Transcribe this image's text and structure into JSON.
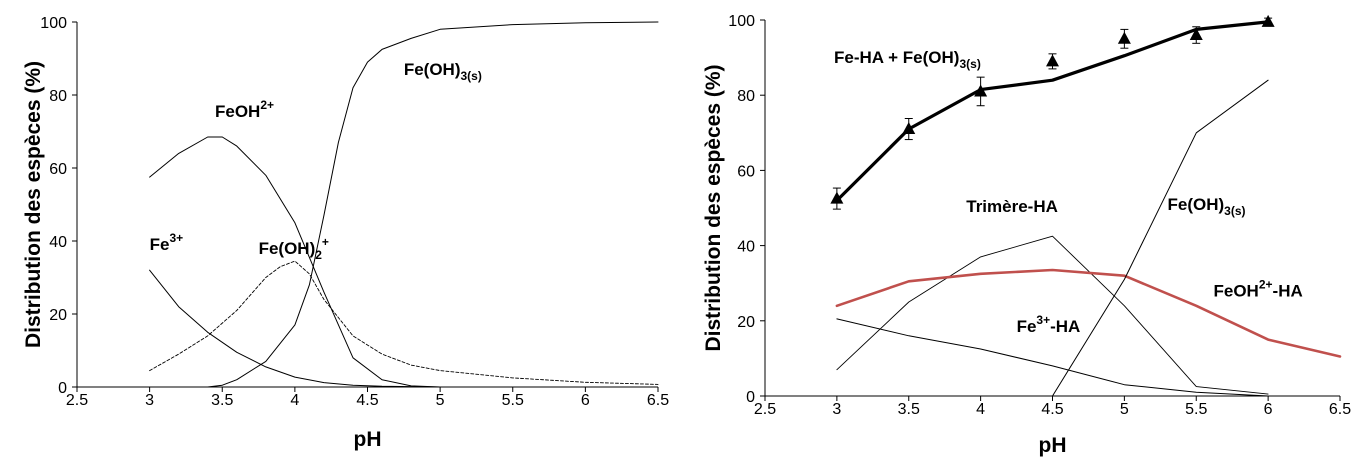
{
  "chart_data": [
    {
      "type": "line",
      "xlabel": "pH",
      "ylabel": "Distribution des espèces (%)",
      "xlim": [
        2.5,
        6.5
      ],
      "ylim": [
        0,
        100
      ],
      "xticks": [
        "2.5",
        "3",
        "3.5",
        "4",
        "4.5",
        "5",
        "5.5",
        "6",
        "6.5"
      ],
      "yticks": [
        "0",
        "20",
        "40",
        "60",
        "80",
        "100"
      ],
      "grid": false,
      "series": [
        {
          "name": "Fe3+",
          "label_main": "Fe",
          "label_sup": "3+",
          "label_sub": "",
          "label_tail": "",
          "label_at": [
            3.0,
            37.5
          ],
          "color": "#000000",
          "width": 1,
          "dash": "",
          "x": [
            3.0,
            3.2,
            3.4,
            3.6,
            3.8,
            4.0,
            4.2,
            4.4,
            4.6,
            4.8,
            5.0
          ],
          "y": [
            32,
            22,
            15,
            9.5,
            5.5,
            2.7,
            1.2,
            0.5,
            0.2,
            0.1,
            0
          ]
        },
        {
          "name": "FeOH2+",
          "label_main": "FeOH",
          "label_sup": "2+",
          "label_sub": "",
          "label_tail": "",
          "label_at": [
            3.45,
            74
          ],
          "color": "#000000",
          "width": 1,
          "dash": "",
          "x": [
            3.0,
            3.2,
            3.4,
            3.5,
            3.6,
            3.8,
            4.0,
            4.2,
            4.4,
            4.6,
            4.8,
            5.0
          ],
          "y": [
            57.5,
            64,
            68.5,
            68.5,
            66,
            58,
            45,
            26,
            8,
            2,
            0.3,
            0
          ]
        },
        {
          "name": "Fe(OH)2+",
          "label_main": "Fe(OH)",
          "label_sup": "+",
          "label_sub": "2",
          "label_tail": "",
          "label_at": [
            3.75,
            36.5
          ],
          "color": "#000000",
          "width": 0.9,
          "dash": "3 2",
          "x": [
            3.0,
            3.2,
            3.4,
            3.6,
            3.8,
            3.9,
            4.0,
            4.1,
            4.2,
            4.4,
            4.6,
            4.8,
            5.0,
            5.5,
            6.0,
            6.5
          ],
          "y": [
            4.5,
            9,
            14,
            21,
            30,
            33,
            34.5,
            31,
            24,
            14,
            9,
            6,
            4.5,
            2.5,
            1.3,
            0.7
          ]
        },
        {
          "name": "Fe(OH)3(s)",
          "label_main": "Fe(OH)",
          "label_sup": "",
          "label_sub": "3(s)",
          "label_tail": "",
          "label_at": [
            4.75,
            85.5
          ],
          "color": "#000000",
          "width": 1,
          "dash": "",
          "x": [
            3.0,
            3.2,
            3.4,
            3.5,
            3.6,
            3.8,
            4.0,
            4.1,
            4.2,
            4.3,
            4.4,
            4.5,
            4.6,
            4.8,
            5.0,
            5.5,
            6.0,
            6.5
          ],
          "y": [
            0,
            0,
            0,
            0.5,
            2,
            7,
            17,
            28,
            47,
            67,
            82,
            89,
            92.5,
            95.5,
            98,
            99.3,
            99.8,
            100
          ]
        }
      ]
    },
    {
      "type": "line",
      "xlabel": "pH",
      "ylabel": "Distribution des espèces (%)",
      "xlim": [
        2.5,
        6.5
      ],
      "ylim": [
        0,
        100
      ],
      "xticks": [
        "2.5",
        "3",
        "3.5",
        "4",
        "4.5",
        "5",
        "5.5",
        "6",
        "6.5"
      ],
      "yticks": [
        "0",
        "20",
        "40",
        "60",
        "80",
        "100"
      ],
      "grid": false,
      "series": [
        {
          "name": "Fe-HA + Fe(OH)3(s)",
          "label_main": "Fe-HA + Fe(OH)",
          "label_sup": "",
          "label_sub": "3(s)",
          "label_tail": "",
          "label_at": [
            2.98,
            88.5
          ],
          "color": "#000000",
          "width": 3.2,
          "dash": "",
          "x": [
            3.0,
            3.5,
            4.0,
            4.5,
            5.0,
            5.5,
            6.0
          ],
          "y": [
            52,
            71,
            81.5,
            84,
            90.5,
            97.5,
            99.5
          ]
        },
        {
          "name": "Trimère-HA",
          "label_main": "Trimère-HA",
          "label_sup": "",
          "label_sub": "",
          "label_tail": "",
          "label_at": [
            3.9,
            49
          ],
          "color": "#000000",
          "width": 0.9,
          "dash": "",
          "x": [
            3.0,
            3.5,
            4.0,
            4.5,
            5.0,
            5.5,
            6.0
          ],
          "y": [
            7,
            25,
            37,
            42.5,
            24,
            2.5,
            0.5
          ]
        },
        {
          "name": "Fe3+-HA",
          "label_main": "Fe",
          "label_sup": "3+",
          "label_sub": "",
          "label_tail": "-HA",
          "label_at": [
            4.25,
            17
          ],
          "color": "#000000",
          "width": 1,
          "dash": "",
          "x": [
            3.0,
            3.5,
            4.0,
            4.5,
            5.0,
            5.5,
            6.0
          ],
          "y": [
            20.5,
            16,
            12.5,
            8,
            3,
            1,
            0
          ]
        },
        {
          "name": "FeOH2+-HA",
          "label_main": "FeOH",
          "label_sup": "2+",
          "label_sub": "",
          "label_tail": "-HA",
          "label_at": [
            5.62,
            26.5
          ],
          "color": "#c0504d",
          "width": 2.6,
          "dash": "",
          "x": [
            3.0,
            3.5,
            4.0,
            4.5,
            5.0,
            5.5,
            6.0,
            6.5
          ],
          "y": [
            24,
            30.5,
            32.5,
            33.5,
            32,
            24,
            15,
            10.5
          ]
        },
        {
          "name": "Fe(OH)3(s)",
          "label_main": "Fe(OH)",
          "label_sup": "",
          "label_sub": "3(s)",
          "label_tail": "",
          "label_at": [
            5.3,
            49.5
          ],
          "color": "#000000",
          "width": 1,
          "dash": "",
          "x": [
            4.5,
            5.0,
            5.5,
            6.0
          ],
          "y": [
            0,
            31,
            70,
            84
          ]
        }
      ],
      "points": {
        "marker": "triangle",
        "x": [
          3.0,
          3.5,
          4.0,
          4.5,
          5.0,
          5.5,
          6.0
        ],
        "y": [
          52.5,
          71,
          81,
          89,
          95,
          96,
          99.5
        ],
        "err": [
          2.8,
          2.8,
          3.8,
          2.0,
          2.5,
          2.2,
          1.0
        ]
      }
    }
  ]
}
